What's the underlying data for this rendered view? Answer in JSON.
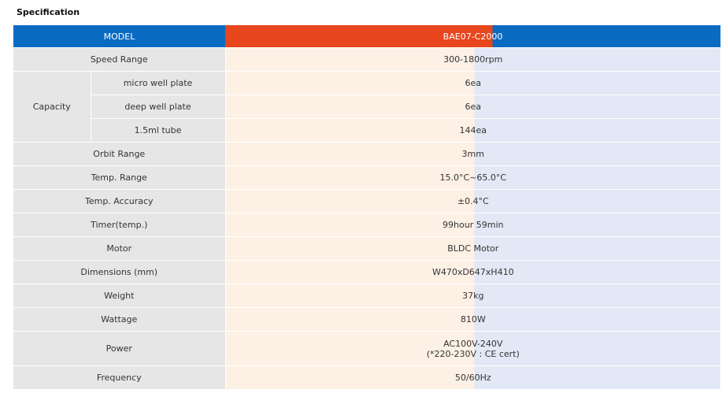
{
  "page": {
    "title": "Specification"
  },
  "header": {
    "label": "MODEL",
    "value": "BAE07-C2000"
  },
  "rows": {
    "speed": {
      "label": "Speed Range",
      "value": "300-1800rpm"
    },
    "capacity": {
      "label": "Capacity",
      "items": [
        {
          "label": "micro well plate",
          "value": "6ea"
        },
        {
          "label": "deep well plate",
          "value": "6ea"
        },
        {
          "label": "1.5ml tube",
          "value": "144ea"
        }
      ]
    },
    "orbit": {
      "label": "Orbit Range",
      "value": "3mm"
    },
    "temp_range": {
      "label": "Temp. Range",
      "value": "15.0°C~65.0°C"
    },
    "temp_accuracy": {
      "label": "Temp. Accuracy",
      "value": "±0.4°C"
    },
    "timer": {
      "label": "Timer(temp.)",
      "value": "99hour 59min"
    },
    "motor": {
      "label": "Motor",
      "value": "BLDC Motor"
    },
    "dimensions": {
      "label": "Dimensions (mm)",
      "value": "W470xD647xH410"
    },
    "weight": {
      "label": "Weight",
      "value": "37kg"
    },
    "wattage": {
      "label": "Wattage",
      "value": "810W"
    },
    "power": {
      "label": "Power",
      "value_line1": "AC100V-240V",
      "value_line2": "(*220-230V : CE cert)"
    },
    "frequency": {
      "label": "Frequency",
      "value": "50/60Hz"
    }
  }
}
